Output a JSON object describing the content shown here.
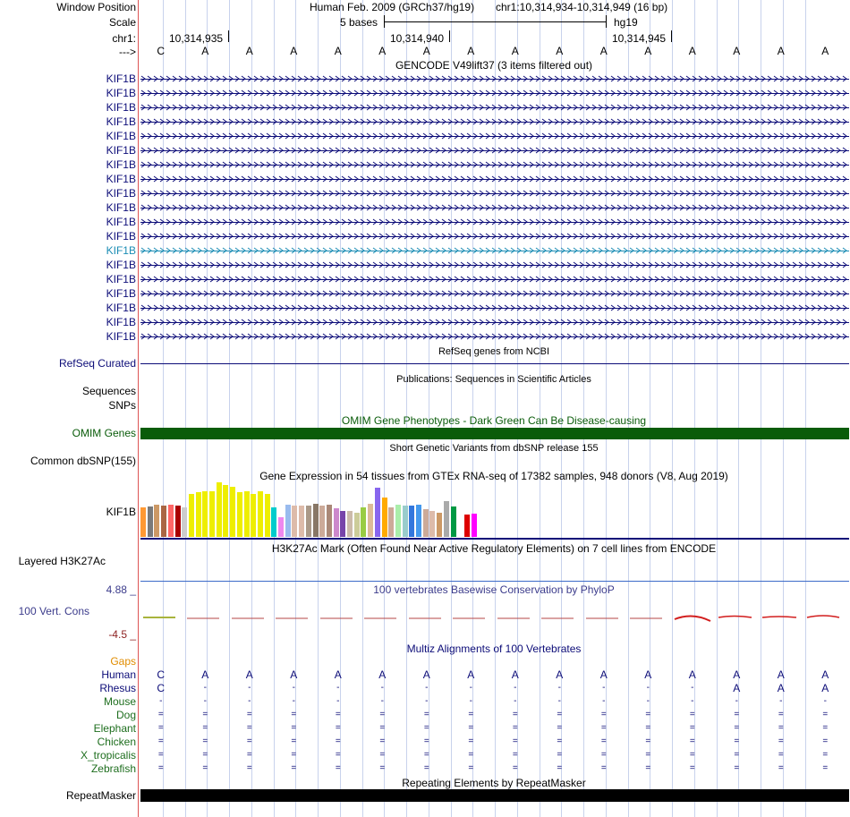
{
  "header": {
    "window_position_label": "Window Position",
    "assembly_title": "Human Feb. 2009 (GRCh37/hg19)",
    "position": "chr1:10,314,934-10,314,949 (16 bp)",
    "scale_label": "Scale",
    "scale_value": "5 bases",
    "scale_db": "hg19",
    "chrom_label": "chr1:",
    "strand_label": "--->",
    "coords": [
      "10,314,935",
      "10,314,940",
      "10,314,945"
    ]
  },
  "sequence": [
    "C",
    "A",
    "A",
    "A",
    "A",
    "A",
    "A",
    "A",
    "A",
    "A",
    "A",
    "A",
    "A",
    "A",
    "A",
    "A"
  ],
  "gencode": {
    "title": "GENCODE V49lift37 (3 items filtered out)",
    "genes": [
      "KIF1B",
      "KIF1B",
      "KIF1B",
      "KIF1B",
      "KIF1B",
      "KIF1B",
      "KIF1B",
      "KIF1B",
      "KIF1B",
      "KIF1B",
      "KIF1B",
      "KIF1B",
      "KIF1B",
      "KIF1B",
      "KIF1B",
      "KIF1B",
      "KIF1B",
      "KIF1B",
      "KIF1B"
    ],
    "highlight_index": 12
  },
  "refseq": {
    "title": "RefSeq genes from NCBI",
    "label": "RefSeq Curated"
  },
  "publications": {
    "title": "Publications: Sequences in Scientific Articles",
    "label_seq": "Sequences",
    "label_snp": "SNPs"
  },
  "omim": {
    "title": "OMIM Gene Phenotypes - Dark Green Can Be Disease-causing",
    "label": "OMIM Genes"
  },
  "dbsnp": {
    "title": "Short Genetic Variants from dbSNP release 155",
    "label": "Common dbSNP(155)"
  },
  "gtex": {
    "title": "Gene Expression in 54 tissues from GTEx RNA-seq of 17382 samples, 948 donors (V8, Aug 2019)",
    "label": "KIF1B"
  },
  "h3k27ac": {
    "title": "H3K27Ac Mark (Often Found Near Active Regulatory Elements) on 7 cell lines from ENCODE",
    "label": "Layered H3K27Ac"
  },
  "phylop": {
    "title": "100 vertebrates Basewise Conservation by PhyloP",
    "label": "100 Vert. Cons",
    "max_label": "4.88 _",
    "min_label": "-4.5 _"
  },
  "multiz": {
    "title": "Multiz Alignments of 100 Vertebrates",
    "gaps_label": "Gaps",
    "species": [
      {
        "name": "Human",
        "bases": [
          "C",
          "A",
          "A",
          "A",
          "A",
          "A",
          "A",
          "A",
          "A",
          "A",
          "A",
          "A",
          "A",
          "A",
          "A",
          "A"
        ]
      },
      {
        "name": "Rhesus",
        "bases": [
          "C",
          "-",
          "-",
          "-",
          "-",
          "-",
          "-",
          "-",
          "-",
          "-",
          "-",
          "-",
          "-",
          "A",
          "A",
          "A"
        ]
      },
      {
        "name": "Mouse",
        "bases": [
          "-",
          "-",
          "-",
          "-",
          "-",
          "-",
          "-",
          "-",
          "-",
          "-",
          "-",
          "-",
          "-",
          "-",
          "-",
          "-"
        ]
      },
      {
        "name": "Dog",
        "bases": [
          "=",
          "=",
          "=",
          "=",
          "=",
          "=",
          "=",
          "=",
          "=",
          "=",
          "=",
          "=",
          "=",
          "=",
          "=",
          "="
        ]
      },
      {
        "name": "Elephant",
        "bases": [
          "=",
          "=",
          "=",
          "=",
          "=",
          "=",
          "=",
          "=",
          "=",
          "=",
          "=",
          "=",
          "=",
          "=",
          "=",
          "="
        ]
      },
      {
        "name": "Chicken",
        "bases": [
          "=",
          "=",
          "=",
          "=",
          "=",
          "=",
          "=",
          "=",
          "=",
          "=",
          "=",
          "=",
          "=",
          "=",
          "=",
          "="
        ]
      },
      {
        "name": "X_tropicalis",
        "bases": [
          "=",
          "=",
          "=",
          "=",
          "=",
          "=",
          "=",
          "=",
          "=",
          "=",
          "=",
          "=",
          "=",
          "=",
          "=",
          "="
        ]
      },
      {
        "name": "Zebrafish",
        "bases": [
          "=",
          "=",
          "=",
          "=",
          "=",
          "=",
          "=",
          "=",
          "=",
          "=",
          "=",
          "=",
          "=",
          "=",
          "=",
          "="
        ]
      }
    ]
  },
  "repeatmasker": {
    "title": "Repeating Elements by RepeatMasker",
    "label": "RepeatMasker"
  },
  "colors": {
    "navy": "#0c0c78",
    "highlight": "#1a8cb4",
    "omim": "#0a5c0a",
    "phylop_label": "#3c3c8c",
    "phylop_min": "#8c1e1e",
    "gaps": "#e08c00",
    "green_species": "#1e6e1e"
  }
}
